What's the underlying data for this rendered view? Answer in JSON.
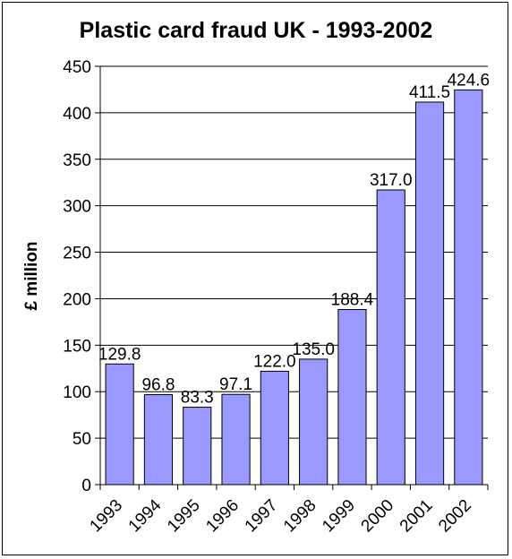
{
  "chart_data": {
    "type": "bar",
    "title": "Plastic card fraud UK - 1993-2002",
    "xlabel": "",
    "ylabel": "£ million",
    "categories": [
      "1993",
      "1994",
      "1995",
      "1996",
      "1997",
      "1998",
      "1999",
      "2000",
      "2001",
      "2002"
    ],
    "values": [
      129.8,
      96.8,
      83.3,
      97.1,
      122.0,
      135.0,
      188.4,
      317.0,
      411.5,
      424.6
    ],
    "data_labels": [
      "129.8",
      "96.8",
      "83.3",
      "97.1",
      "122.0",
      "135.0",
      "188.4",
      "317.0",
      "411.5",
      "424.6"
    ],
    "ylim": [
      0,
      450
    ],
    "yticks": [
      0,
      50,
      100,
      150,
      200,
      250,
      300,
      350,
      400,
      450
    ],
    "grid": true,
    "legend": "none",
    "colors": {
      "bar_fill": "#9999ff",
      "bar_stroke": "#000000",
      "grid": "#000000",
      "background": "#ffffff"
    }
  }
}
